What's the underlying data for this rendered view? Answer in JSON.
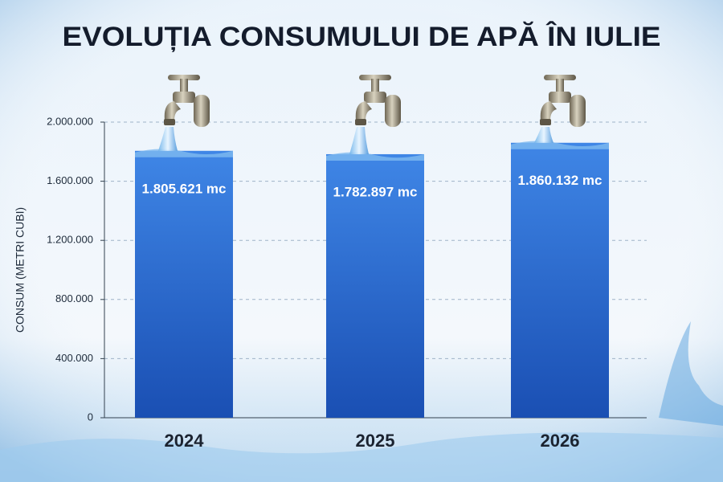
{
  "chart_data": {
    "type": "bar",
    "title": "EVOLUȚIA CONSUMULUI DE APĂ ÎN IULIE",
    "y_label": "CONSUM (METRI CUBI)",
    "categories": [
      "2024",
      "2025",
      "2026"
    ],
    "values": [
      1805621,
      1782897,
      1860132
    ],
    "value_labels": [
      "1.805.621 mc",
      "1.782.897 mc",
      "1.860.132 mc"
    ],
    "color": "#2a66cc",
    "ylim": [
      0,
      2000000
    ],
    "yticks": [
      0,
      {
        "value": 400000,
        "label": "400.000"
      },
      {
        "value": 800000,
        "label": "800.000"
      },
      {
        "value": 1200000,
        "label": "1.200.000"
      },
      {
        "value": 1600000,
        "label": "1.600.000"
      },
      {
        "value": 2000000,
        "label": "2.000.000"
      }
    ],
    "grid": true
  }
}
